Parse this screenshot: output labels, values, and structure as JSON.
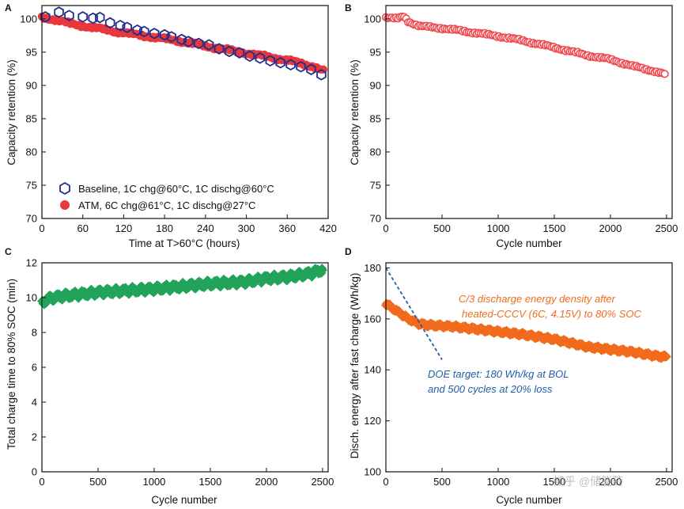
{
  "watermark": "知乎 @储能药",
  "colors": {
    "baseline": "#1f2e8c",
    "atm": "#e8383c",
    "cycling": "#ef4a50",
    "charge_time": "#22a35a",
    "energy": "#f26b1d",
    "doe": "#1f5fa8"
  },
  "chart_data": [
    {
      "panel": "A",
      "type": "scatter",
      "xlabel": "Time at T>60°C (hours)",
      "ylabel": "Capacity retention (%)",
      "xlim": [
        0,
        420
      ],
      "ylim": [
        70,
        102
      ],
      "xticks": [
        0,
        60,
        120,
        180,
        240,
        300,
        360,
        420
      ],
      "yticks": [
        70,
        75,
        80,
        85,
        90,
        95,
        100
      ],
      "series": [
        {
          "name": "Baseline, 1C chg@60°C, 1C dischg@60°C",
          "marker": "open-hexagon",
          "x": [
            5,
            25,
            40,
            60,
            75,
            85,
            100,
            115,
            125,
            140,
            150,
            165,
            180,
            190,
            205,
            215,
            230,
            245,
            260,
            275,
            290,
            305,
            320,
            335,
            350,
            365,
            380,
            395,
            410
          ],
          "y": [
            100.3,
            101.0,
            100.5,
            100.3,
            100.1,
            100.2,
            99.4,
            99.0,
            98.7,
            98.3,
            98.1,
            97.8,
            97.6,
            97.3,
            96.9,
            96.6,
            96.3,
            96.1,
            95.5,
            95.1,
            94.9,
            94.4,
            94.1,
            93.7,
            93.4,
            93.1,
            92.8,
            92.4,
            91.6
          ]
        },
        {
          "name": "ATM, 6C chg@61°C, 1C dischg@27°C",
          "marker": "filled-circle",
          "trend_x": [
            0,
            20,
            40,
            80,
            120,
            160,
            200,
            240,
            280,
            320,
            360,
            400,
            415
          ],
          "trend_y": [
            100.2,
            99.9,
            99.3,
            98.6,
            97.9,
            97.3,
            96.7,
            95.9,
            95.2,
            94.5,
            93.8,
            92.8,
            92.1
          ]
        }
      ]
    },
    {
      "panel": "B",
      "type": "scatter",
      "xlabel": "Cycle number",
      "ylabel": "Capacity retention (%)",
      "xlim": [
        0,
        2550
      ],
      "ylim": [
        70,
        102
      ],
      "xticks": [
        0,
        500,
        1000,
        1500,
        2000,
        2500
      ],
      "yticks": [
        70,
        75,
        80,
        85,
        90,
        95,
        100
      ],
      "series": [
        {
          "name": "",
          "marker": "open-circle",
          "trend_x": [
            0,
            100,
            160,
            200,
            300,
            500,
            800,
            1000,
            1200,
            1500,
            1800,
            2000,
            2200,
            2400,
            2500
          ],
          "trend_y": [
            100.2,
            100.0,
            100.4,
            99.6,
            98.9,
            98.6,
            97.9,
            97.4,
            96.8,
            95.7,
            94.5,
            93.9,
            92.9,
            92.1,
            91.6
          ]
        }
      ]
    },
    {
      "panel": "C",
      "type": "scatter",
      "xlabel": "Cycle number",
      "ylabel": "Total charge time to 80% SOC (min)",
      "xlim": [
        0,
        2550
      ],
      "ylim": [
        0,
        12
      ],
      "xticks": [
        0,
        500,
        1000,
        1500,
        2000,
        2500
      ],
      "yticks": [
        0,
        2,
        4,
        6,
        8,
        10,
        12
      ],
      "series": [
        {
          "name": "",
          "marker": "filled-diamond",
          "trend_x": [
            0,
            50,
            100,
            200,
            500,
            1000,
            1500,
            1800,
            2000,
            2200,
            2400,
            2500
          ],
          "trend_y": [
            9.7,
            9.9,
            10.0,
            10.1,
            10.3,
            10.5,
            10.8,
            10.9,
            11.1,
            11.2,
            11.4,
            11.6
          ]
        }
      ]
    },
    {
      "panel": "D",
      "type": "scatter",
      "xlabel": "Cycle number",
      "ylabel": "Disch. energy after fast charge (Wh/kg)",
      "xlim": [
        0,
        2550
      ],
      "ylim": [
        100,
        182
      ],
      "xticks": [
        0,
        500,
        1000,
        1500,
        2000,
        2500
      ],
      "yticks": [
        100,
        120,
        140,
        160,
        180
      ],
      "series": [
        {
          "name": "",
          "marker": "filled-diamond",
          "trend_x": [
            0,
            100,
            200,
            300,
            400,
            600,
            800,
            1000,
            1200,
            1500,
            1800,
            2000,
            2200,
            2400,
            2500
          ],
          "trend_y": [
            166,
            163,
            160,
            158,
            157.5,
            157,
            156,
            155,
            154,
            152,
            149,
            148,
            147,
            145.5,
            145
          ]
        },
        {
          "name": "DOE target line",
          "x": [
            0,
            500
          ],
          "y": [
            180,
            144
          ]
        }
      ],
      "annotations": [
        "C/3 discharge energy density after",
        "heated-CCCV (6C, 4.15V) to 80% SOC",
        "DOE target: 180 Wh/kg at BOL",
        "and 500 cycles at 20% loss"
      ]
    }
  ]
}
